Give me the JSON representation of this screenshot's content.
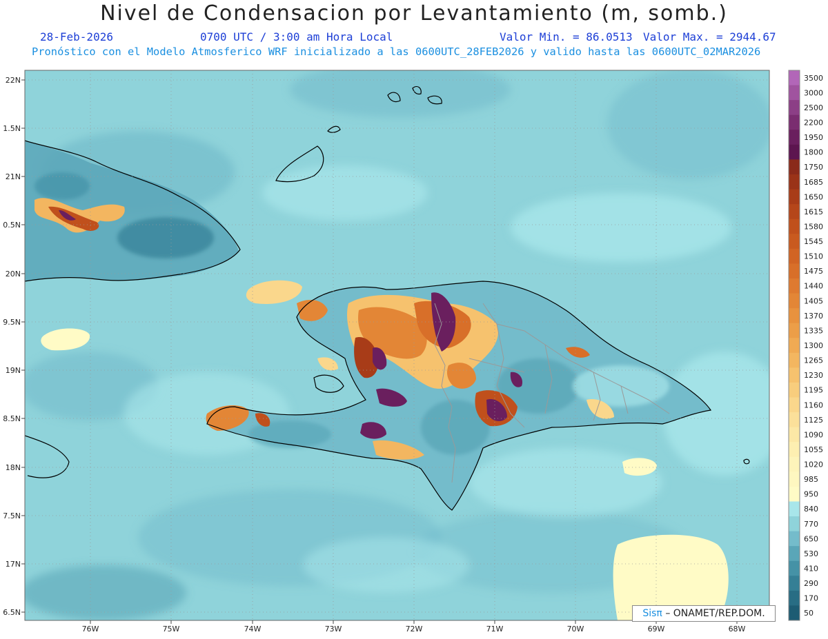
{
  "header": {
    "title": "Nivel de Condensacion por Levantamiento (m, somb.)",
    "date": "28-Feb-2026",
    "time": "0700 UTC / 3:00 am Hora Local",
    "min_label": "Valor Min. = 86.0513",
    "max_label": "Valor Max. = 2944.67",
    "model_line": "Pronóstico con el Modelo Atmosferico WRF inicializado a las 0600UTC_28FEB2026 y valido hasta las  0600UTC_02MAR2026"
  },
  "axes": {
    "lat_labels": [
      "22N",
      "1.5N",
      "21N",
      "0.5N",
      "20N",
      "9.5N",
      "19N",
      "8.5N",
      "18N",
      "7.5N",
      "17N",
      "6.5N"
    ],
    "lon_labels": [
      "76W",
      "75W",
      "74W",
      "73W",
      "72W",
      "71W",
      "70W",
      "69W",
      "68W"
    ]
  },
  "legend": {
    "levels": [
      "3500",
      "3000",
      "2500",
      "2200",
      "1950",
      "1800",
      "1750",
      "1685",
      "1650",
      "1615",
      "1580",
      "1545",
      "1510",
      "1475",
      "1440",
      "1405",
      "1370",
      "1335",
      "1300",
      "1265",
      "1230",
      "1195",
      "1160",
      "1125",
      "1090",
      "1055",
      "1020",
      "985",
      "950",
      "840",
      "770",
      "650",
      "530",
      "410",
      "290",
      "170",
      "50"
    ],
    "colors": [
      "#b266b8",
      "#a0539f",
      "#8c3f86",
      "#7a2d70",
      "#6a1f5e",
      "#5c154f",
      "#8a2a1a",
      "#9a3318",
      "#a83c18",
      "#b5461a",
      "#c0501c",
      "#c95a1f",
      "#d16424",
      "#d86f29",
      "#de7a30",
      "#e38636",
      "#e8923e",
      "#ec9e48",
      "#f0aa53",
      "#f3b660",
      "#f6c26e",
      "#f8cd7d",
      "#fad78c",
      "#fbe09a",
      "#fce8a6",
      "#fdefb1",
      "#fdf4ba",
      "#fef7c0",
      "#fffbc6",
      "#a8e6ea",
      "#8fd3da",
      "#74bccb",
      "#5aa6b8",
      "#4592a6",
      "#357f95",
      "#286d84",
      "#1d5c73"
    ]
  },
  "credit": {
    "logo": "Sisπ",
    "text": "– ONAMET/REP.DOM."
  }
}
